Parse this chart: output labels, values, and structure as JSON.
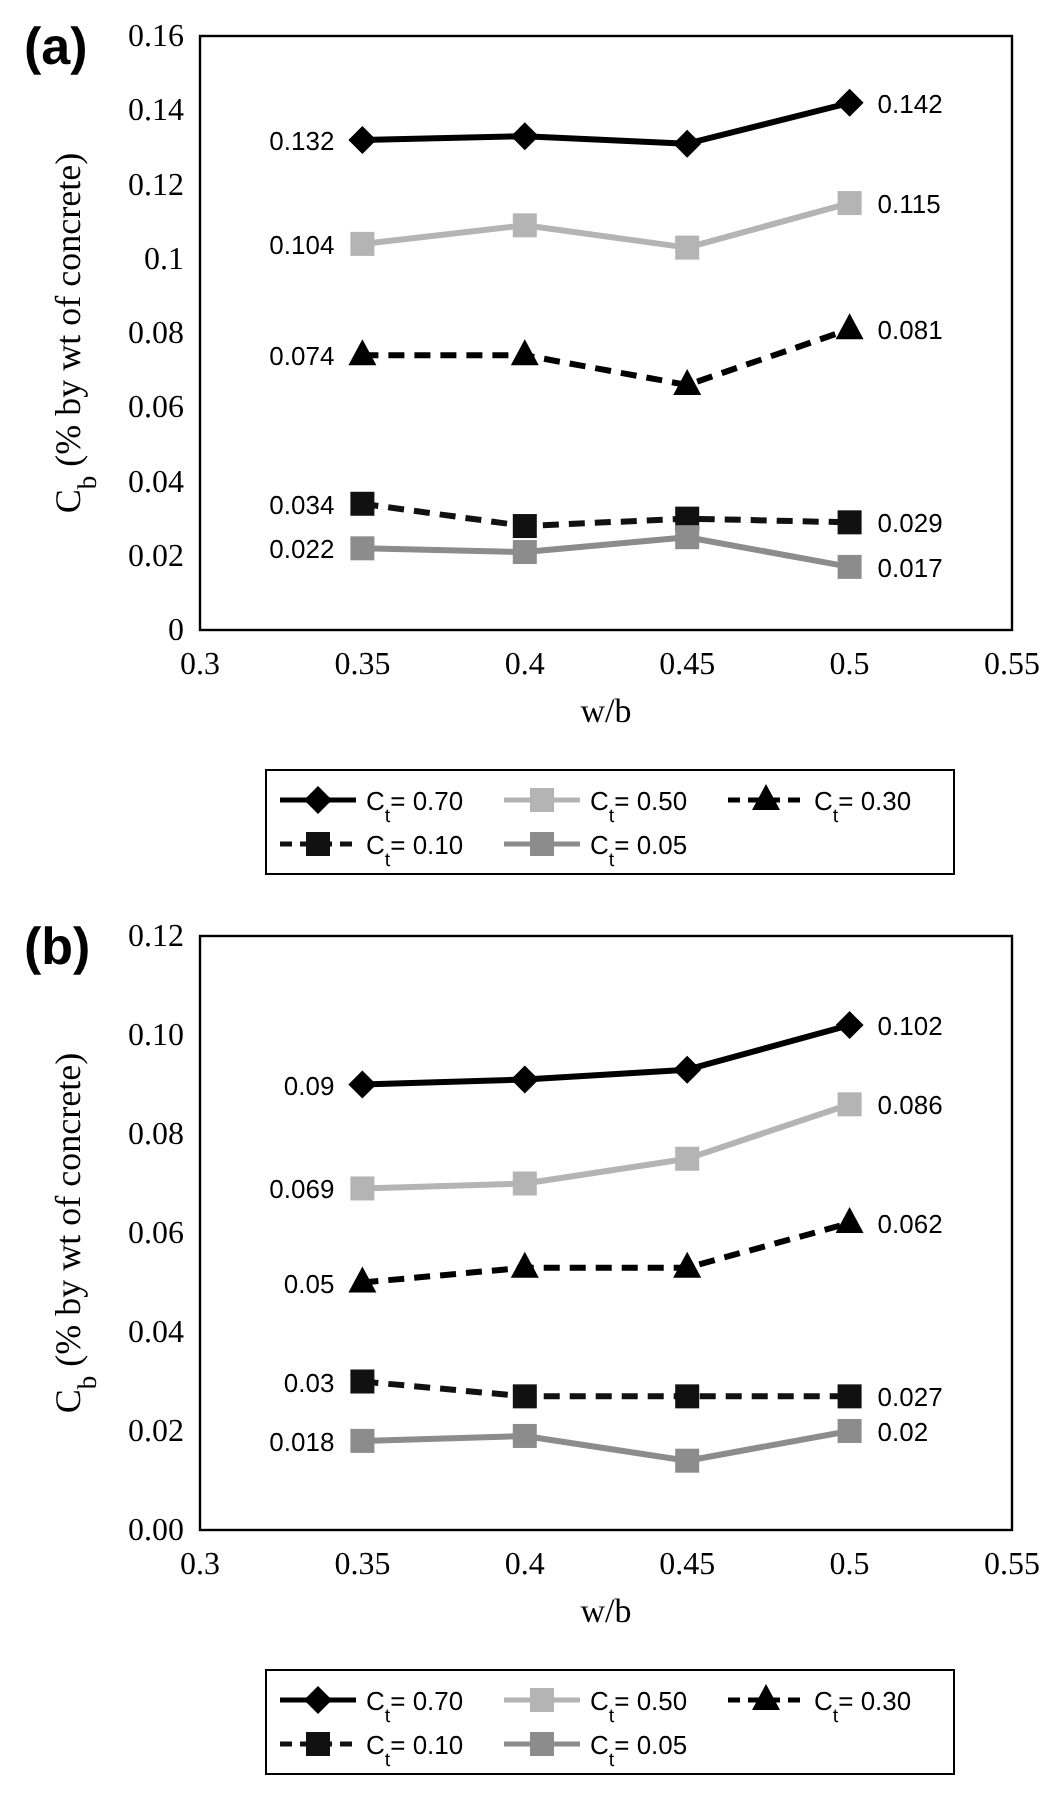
{
  "chart_data": [
    {
      "type": "line",
      "title": "(a)",
      "xlabel": "w/b",
      "ylabel": "C$_{b}$ (% by wt of concrete)",
      "x": [
        0.35,
        0.4,
        0.45,
        0.5
      ],
      "xlim": [
        0.3,
        0.55
      ],
      "xticks": [
        0.3,
        0.35,
        0.4,
        0.45,
        0.5,
        0.55
      ],
      "ylim": [
        0,
        0.16
      ],
      "yticks": [
        0,
        0.02,
        0.04,
        0.06,
        0.08,
        0.1,
        0.12,
        0.14,
        0.16
      ],
      "legend": "bottom",
      "series": [
        {
          "name": "C$_{t}$= 0.70",
          "color": "#000000",
          "marker": "diamond",
          "line_style": "solid",
          "values": [
            0.132,
            0.133,
            0.131,
            0.142
          ],
          "value_labels": [
            "0.132",
            null,
            null,
            "0.142"
          ]
        },
        {
          "name": "C$_{t}$= 0.50",
          "color": "#b4b4b4",
          "marker": "square",
          "line_style": "solid",
          "values": [
            0.104,
            0.109,
            0.103,
            0.115
          ],
          "value_labels": [
            "0.104",
            null,
            null,
            "0.115"
          ]
        },
        {
          "name": "C$_{t}$= 0.30",
          "color": "#000000",
          "marker": "triangle",
          "line_style": "dashed",
          "values": [
            0.074,
            0.074,
            0.066,
            0.081
          ],
          "value_labels": [
            "0.074",
            null,
            null,
            "0.081"
          ]
        },
        {
          "name": "C$_{t}$= 0.10",
          "color": "#111111",
          "marker": "square",
          "line_style": "dashed",
          "values": [
            0.034,
            0.028,
            0.03,
            0.029
          ],
          "value_labels": [
            "0.034",
            null,
            null,
            "0.029"
          ]
        },
        {
          "name": "C$_{t}$= 0.05",
          "color": "#8c8c8c",
          "marker": "square",
          "line_style": "solid",
          "values": [
            0.022,
            0.021,
            0.025,
            0.017
          ],
          "value_labels": [
            "0.022",
            null,
            null,
            "0.017"
          ]
        }
      ]
    },
    {
      "type": "line",
      "title": "(b)",
      "xlabel": "w/b",
      "ylabel": "C$_{b}$ (% by wt of concrete)",
      "x": [
        0.35,
        0.4,
        0.45,
        0.5
      ],
      "xlim": [
        0.3,
        0.55
      ],
      "xticks": [
        0.3,
        0.35,
        0.4,
        0.45,
        0.5,
        0.55
      ],
      "ylim": [
        0,
        0.12
      ],
      "yticks": [
        {
          "value": 0,
          "label": "0.00"
        },
        0.02,
        0.04,
        0.06,
        0.08,
        {
          "value": 0.1,
          "label": "0.10"
        },
        0.12
      ],
      "legend": "bottom",
      "series": [
        {
          "name": "C$_{t}$= 0.70",
          "color": "#000000",
          "marker": "diamond",
          "line_style": "solid",
          "values": [
            0.09,
            0.091,
            0.093,
            0.102
          ],
          "value_labels": [
            "0.09",
            null,
            null,
            "0.102"
          ]
        },
        {
          "name": "C$_{t}$= 0.50",
          "color": "#b4b4b4",
          "marker": "square",
          "line_style": "solid",
          "values": [
            0.069,
            0.07,
            0.075,
            0.086
          ],
          "value_labels": [
            "0.069",
            null,
            null,
            "0.086"
          ]
        },
        {
          "name": "C$_{t}$= 0.30",
          "color": "#000000",
          "marker": "triangle",
          "line_style": "dashed",
          "values": [
            0.05,
            0.053,
            0.053,
            0.062
          ],
          "value_labels": [
            "0.05",
            null,
            null,
            "0.062"
          ]
        },
        {
          "name": "C$_{t}$= 0.10",
          "color": "#111111",
          "marker": "square",
          "line_style": "dashed",
          "values": [
            0.03,
            0.027,
            0.027,
            0.027
          ],
          "value_labels": [
            "0.03",
            null,
            null,
            "0.027"
          ]
        },
        {
          "name": "C$_{t}$= 0.05",
          "color": "#8c8c8c",
          "marker": "square",
          "line_style": "solid",
          "values": [
            0.018,
            0.019,
            0.014,
            0.02
          ],
          "value_labels": [
            "0.018",
            null,
            null,
            "0.02"
          ]
        }
      ]
    }
  ]
}
